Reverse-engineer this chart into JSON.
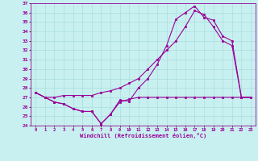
{
  "xlabel": "Windchill (Refroidissement éolien,°C)",
  "xlim": [
    -0.5,
    23.5
  ],
  "ylim": [
    24,
    37
  ],
  "yticks": [
    24,
    25,
    26,
    27,
    28,
    29,
    30,
    31,
    32,
    33,
    34,
    35,
    36,
    37
  ],
  "xticks": [
    0,
    1,
    2,
    3,
    4,
    5,
    6,
    7,
    8,
    9,
    10,
    11,
    12,
    13,
    14,
    15,
    16,
    17,
    18,
    19,
    20,
    21,
    22,
    23
  ],
  "bg_color": "#c8f0f0",
  "line_color": "#990099",
  "grid_color": "#aadddd",
  "line1_x": [
    0,
    1,
    2,
    3,
    4,
    5,
    6,
    7,
    8,
    9,
    10,
    11,
    12,
    13,
    14,
    15,
    16,
    17,
    18,
    19,
    20,
    21,
    22,
    23
  ],
  "line1_y": [
    27.5,
    27.0,
    26.5,
    26.3,
    25.8,
    25.5,
    25.5,
    24.2,
    25.2,
    26.7,
    26.6,
    28.0,
    29.0,
    30.5,
    32.5,
    35.3,
    36.0,
    36.7,
    35.5,
    35.2,
    33.5,
    33.0,
    27.0,
    27.0
  ],
  "line2_x": [
    0,
    1,
    2,
    3,
    4,
    5,
    6,
    7,
    8,
    9,
    10,
    11,
    12,
    13,
    14,
    15,
    16,
    17,
    18,
    19,
    20,
    21,
    22,
    23
  ],
  "line2_y": [
    27.5,
    27.0,
    27.0,
    27.2,
    27.2,
    27.2,
    27.2,
    27.5,
    27.7,
    28.0,
    28.5,
    29.0,
    30.0,
    31.0,
    32.0,
    33.0,
    34.5,
    36.2,
    35.8,
    34.5,
    33.0,
    32.5,
    27.0,
    27.0
  ],
  "line3_x": [
    0,
    1,
    2,
    3,
    4,
    5,
    6,
    7,
    8,
    9,
    10,
    11,
    12,
    13,
    14,
    15,
    16,
    17,
    18,
    19,
    20,
    21,
    22,
    23
  ],
  "line3_y": [
    27.5,
    27.0,
    26.5,
    26.3,
    25.8,
    25.5,
    25.5,
    24.2,
    25.2,
    26.5,
    26.8,
    27.0,
    27.0,
    27.0,
    27.0,
    27.0,
    27.0,
    27.0,
    27.0,
    27.0,
    27.0,
    27.0,
    27.0,
    27.0
  ]
}
